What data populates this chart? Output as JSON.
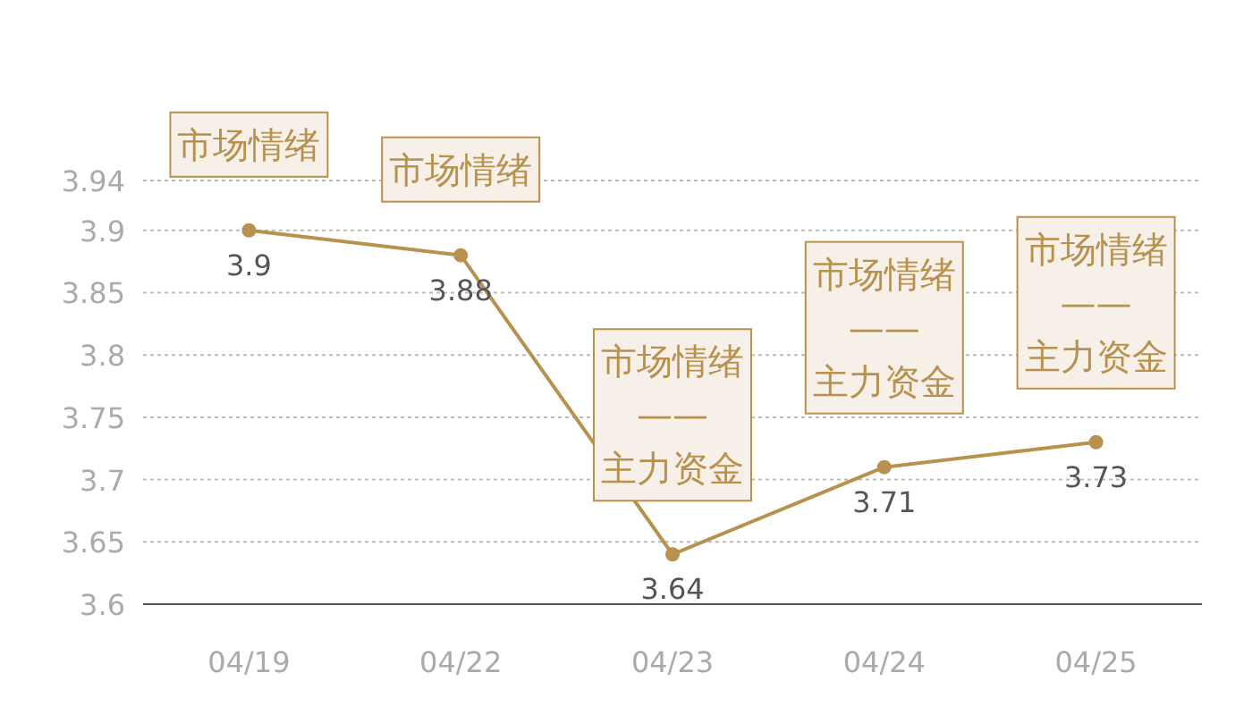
{
  "chart_data": {
    "type": "line",
    "categories": [
      "04/19",
      "04/22",
      "04/23",
      "04/24",
      "04/25"
    ],
    "series": [
      {
        "color": "#b8914e",
        "values": [
          3.9,
          3.88,
          3.64,
          3.71,
          3.73
        ]
      }
    ],
    "ylim": [
      3.6,
      3.94
    ],
    "yticks": [
      3.6,
      3.65,
      3.7,
      3.75,
      3.8,
      3.85,
      3.9,
      3.94
    ],
    "grid": "y",
    "marker": "circle",
    "line_style": "solid",
    "data_labels": true,
    "annotations": [
      {
        "text": "市场情绪",
        "x": "04/19",
        "y": 3.9
      },
      {
        "text": "市场情绪",
        "x": "04/22",
        "y": 3.88
      },
      {
        "text": "市场情绪\n——\n主力资金",
        "x": "04/23",
        "y": 3.64
      },
      {
        "text": "市场情绪\n——\n主力资金",
        "x": "04/24",
        "y": 3.71
      },
      {
        "text": "市场情绪\n——\n主力资金",
        "x": "04/25",
        "y": 3.73
      }
    ]
  }
}
